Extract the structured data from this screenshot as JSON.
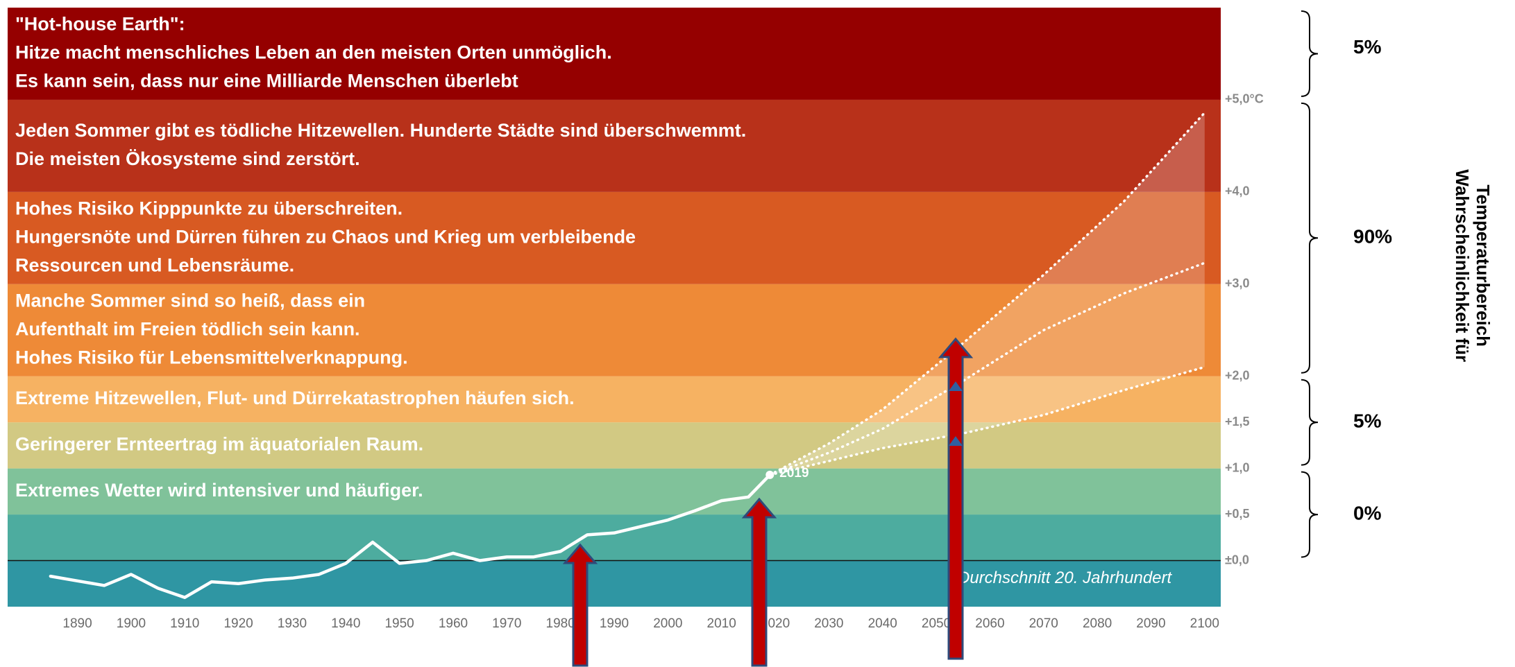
{
  "chart_data": {
    "type": "line",
    "xlim": [
      1877,
      2103
    ],
    "ylim": [
      -0.5,
      6.0
    ],
    "xticks": [
      1890,
      1900,
      1910,
      1920,
      1930,
      1940,
      1950,
      1960,
      1970,
      1980,
      1990,
      2000,
      2010,
      2020,
      2030,
      2040,
      2050,
      2060,
      2070,
      2080,
      2090,
      2100
    ],
    "yticks": [
      {
        "value": 0,
        "label": "±0,0"
      },
      {
        "value": 0.5,
        "label": "+0,5"
      },
      {
        "value": 1.0,
        "label": "+1,0"
      },
      {
        "value": 1.5,
        "label": "+1,5"
      },
      {
        "value": 2.0,
        "label": "+2,0"
      },
      {
        "value": 3.0,
        "label": "+3,0"
      },
      {
        "value": 4.0,
        "label": "+4,0"
      },
      {
        "value": 5.0,
        "label": "+5,0°C"
      }
    ],
    "bands": [
      {
        "range": [
          -0.5,
          0
        ],
        "color": "#2f96a3",
        "lines": []
      },
      {
        "range": [
          0,
          0.5
        ],
        "color": "#4dac9f",
        "lines": []
      },
      {
        "range": [
          0.5,
          1.0
        ],
        "color": "#80c29a",
        "lines": [
          "Extremes Wetter wird intensiver und häufiger."
        ]
      },
      {
        "range": [
          1.0,
          1.5
        ],
        "color": "#d2c983",
        "lines": [
          "Geringerer Ernteertrag im äquatorialen Raum."
        ]
      },
      {
        "range": [
          1.5,
          2.0
        ],
        "color": "#f6b262",
        "lines": [
          "Extreme Hitzewellen, Flut- und Dürrekatastrophen häufen sich."
        ]
      },
      {
        "range": [
          2.0,
          3.0
        ],
        "color": "#ee8a37",
        "lines": [
          "Manche Sommer sind so heiß, dass ein",
          "Aufenthalt im Freien tödlich sein kann.",
          "Hohes Risiko für Lebensmittelverknappung."
        ]
      },
      {
        "range": [
          3.0,
          4.0
        ],
        "color": "#d85a22",
        "lines": [
          "Hohes Risiko Kipppunkte zu überschreiten.",
          "Hungersnöte und Dürren führen zu Chaos und Krieg um verbleibende",
          "Ressourcen und Lebensräume."
        ]
      },
      {
        "range": [
          4.0,
          5.0
        ],
        "color": "#b8311a",
        "lines": [
          "Jeden Sommer gibt es tödliche Hitzewellen. Hunderte Städte sind überschwemmt.",
          "Die meisten Ökosysteme sind zerstört."
        ]
      },
      {
        "range": [
          5.0,
          6.0
        ],
        "color": "#950000",
        "lines": [
          "\"Hot-house Earth\":",
          "Hitze macht menschliches Leben an den meisten Orten unmöglich.",
          "Es kann sein, dass nur eine Milliarde Menschen überlebt"
        ]
      }
    ],
    "series": [
      {
        "color": "#ffffff",
        "style": "solid",
        "x": [
          1885,
          1890,
          1895,
          1900,
          1905,
          1910,
          1915,
          1920,
          1925,
          1930,
          1935,
          1940,
          1945,
          1950,
          1955,
          1960,
          1965,
          1970,
          1975,
          1980,
          1985,
          1990,
          1995,
          2000,
          2005,
          2010,
          2015,
          2019
        ],
        "values": [
          -0.17,
          -0.22,
          -0.27,
          -0.15,
          -0.3,
          -0.4,
          -0.23,
          -0.25,
          -0.21,
          -0.19,
          -0.15,
          -0.03,
          0.2,
          -0.03,
          0.0,
          0.08,
          0.0,
          0.04,
          0.04,
          0.1,
          0.28,
          0.3,
          0.37,
          0.44,
          0.54,
          0.65,
          0.69,
          0.93
        ]
      },
      {
        "color": "#ffffff",
        "style": "dotted",
        "x": [
          2019,
          2030,
          2040,
          2055,
          2070,
          2085,
          2100
        ],
        "values": [
          0.93,
          1.27,
          1.64,
          2.36,
          3.1,
          3.9,
          4.86
        ]
      },
      {
        "color": "#ffffff",
        "style": "dotted",
        "x": [
          2019,
          2030,
          2040,
          2055,
          2070,
          2085,
          2100
        ],
        "values": [
          0.93,
          1.17,
          1.43,
          1.95,
          2.5,
          2.9,
          3.23
        ]
      },
      {
        "color": "#ffffff",
        "style": "dotted",
        "x": [
          2019,
          2030,
          2040,
          2055,
          2070,
          2085,
          2100
        ],
        "values": [
          0.93,
          1.08,
          1.22,
          1.38,
          1.58,
          1.85,
          2.1
        ]
      }
    ],
    "point_label": "2019",
    "baseline_label": "Durchschnitt 20. Jahrhundert",
    "probabilities": {
      "labels": [
        "5%",
        "90%",
        "5%",
        "0%"
      ],
      "ranges": [
        [
          5.0,
          6.0
        ],
        [
          2.0,
          5.0
        ],
        [
          1.0,
          2.0
        ],
        [
          0,
          1.0
        ]
      ]
    },
    "side_title": [
      "Wahrscheinlichkeit für",
      "Temperaturbereich"
    ]
  }
}
